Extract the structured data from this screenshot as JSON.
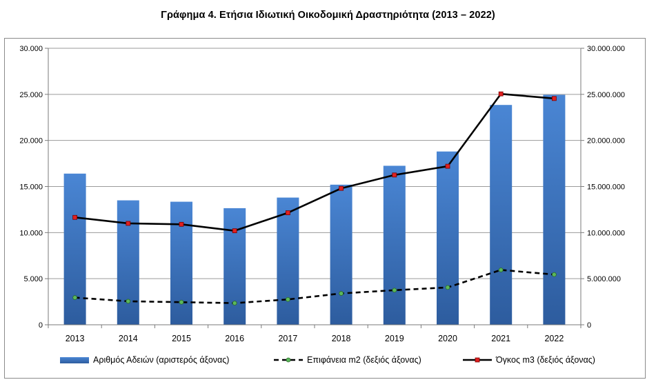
{
  "chart_data": {
    "type": "bar",
    "title": "Γράφημα 4. Ετήσια Ιδιωτική Οικοδομική Δραστηριότητα (2013 – 2022)",
    "categories": [
      "2013",
      "2014",
      "2015",
      "2016",
      "2017",
      "2018",
      "2019",
      "2020",
      "2021",
      "2022"
    ],
    "left_axis": {
      "ylim": [
        0,
        30000
      ],
      "ticks": [
        0,
        5000,
        10000,
        15000,
        20000,
        25000,
        30000
      ],
      "tick_labels": [
        "0",
        "5.000",
        "10.000",
        "15.000",
        "20.000",
        "25.000",
        "30.000"
      ]
    },
    "right_axis": {
      "ylim": [
        0,
        30000000
      ],
      "ticks": [
        0,
        5000000,
        10000000,
        15000000,
        20000000,
        25000000,
        30000000
      ],
      "tick_labels": [
        "0",
        "5.000.000",
        "10.000.000",
        "15.000.000",
        "20.000.000",
        "25.000.000",
        "30.000.000"
      ]
    },
    "series": [
      {
        "name": "Αριθμός Αδειών (αριστερός άξονας)",
        "kind": "bar",
        "axis": "left",
        "color": "#3f76c3",
        "values": [
          16400,
          13500,
          13350,
          12650,
          13800,
          15200,
          17250,
          18800,
          23850,
          24950
        ]
      },
      {
        "name": "Επιφάνεια m2 (δεξιός άξονας)",
        "kind": "line",
        "axis": "right",
        "color": "#000000",
        "marker_color": "#5cb85c",
        "dashed": true,
        "values": [
          2950000,
          2550000,
          2450000,
          2350000,
          2750000,
          3400000,
          3750000,
          4050000,
          5950000,
          5450000
        ]
      },
      {
        "name": "Όγκος m3 (δεξιός άξονας)",
        "kind": "line",
        "axis": "right",
        "color": "#000000",
        "marker_color": "#e02020",
        "dashed": false,
        "values": [
          11650000,
          11000000,
          10900000,
          10200000,
          12150000,
          14800000,
          16250000,
          17200000,
          25050000,
          24550000
        ]
      }
    ],
    "legend_position": "bottom",
    "grid": "horizontal"
  }
}
